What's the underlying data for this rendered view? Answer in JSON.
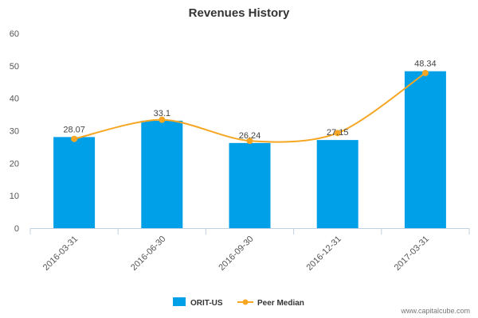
{
  "chart_data": {
    "type": "bar",
    "title": "Revenues History",
    "categories": [
      "2016-03-31",
      "2016-06-30",
      "2016-09-30",
      "2016-12-31",
      "2017-03-31"
    ],
    "series": [
      {
        "name": "ORIT-US",
        "type": "bar",
        "values": [
          28.07,
          33.1,
          26.24,
          27.15,
          48.34
        ],
        "data_labels": [
          "28.07",
          "33.1",
          "26.24",
          "27.15",
          "48.34"
        ],
        "color": "#00a0e9"
      },
      {
        "name": "Peer Median",
        "type": "line",
        "smooth": true,
        "values": [
          27.5,
          33.4,
          26.9,
          29.3,
          47.8
        ],
        "color": "#f5a623"
      }
    ],
    "ylim": [
      0,
      60
    ],
    "yticks": [
      0,
      10,
      20,
      30,
      40,
      50,
      60
    ],
    "grid": false,
    "legend_position": "bottom"
  },
  "watermark": "www.capitalcube.com"
}
